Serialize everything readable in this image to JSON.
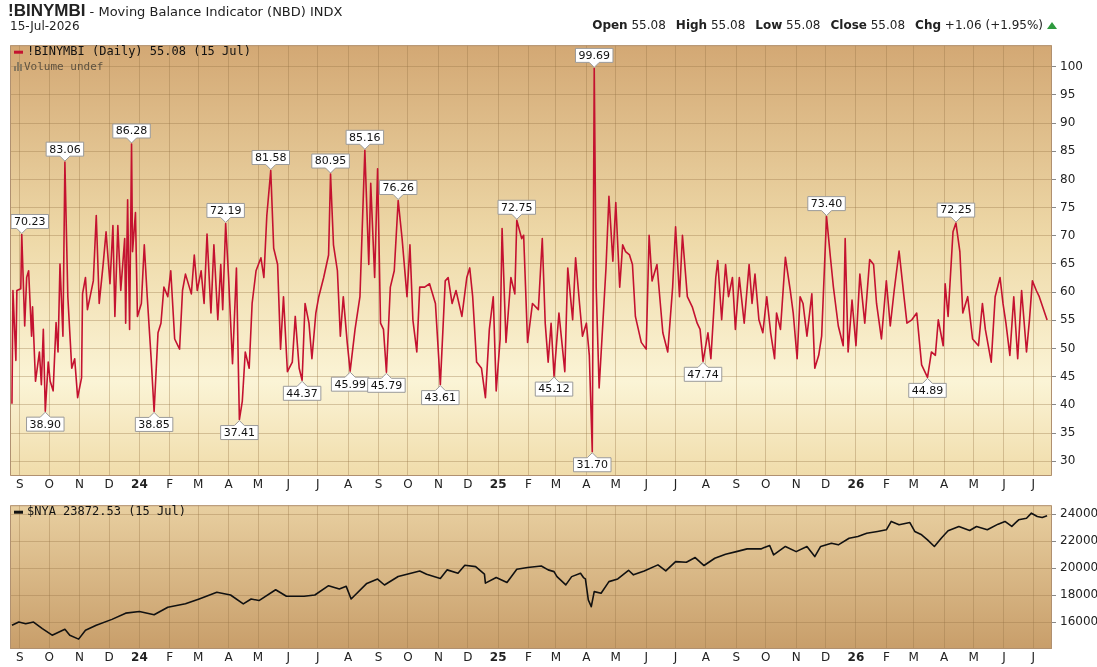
{
  "chart_data": [
    {
      "type": "line",
      "title": "!BINYMBI - Moving Balance Indicator (NBD) INDX",
      "subtitle": "15-Jul-2026",
      "annotations": [
        "Open 55.08",
        "High 55.08",
        "Low 55.08",
        "Close 55.08",
        "Chg +1.06 (+1.95%)",
        "Volume undef"
      ],
      "x": [
        "2023-08-24",
        "2023-08-25",
        "2023-08-28",
        "2023-08-29",
        "2023-09-02",
        "2023-09-03",
        "2023-09-06",
        "2023-09-08",
        "2023-09-10",
        "2023-09-13",
        "2023-09-14",
        "2023-09-17",
        "2023-09-21",
        "2023-09-23",
        "2023-09-25",
        "2023-09-27",
        "2023-09-30",
        "2023-10-02",
        "2023-10-05",
        "2023-10-08",
        "2023-10-10",
        "2023-10-12",
        "2023-10-15",
        "2023-10-17",
        "2023-10-20",
        "2023-10-24",
        "2023-10-27",
        "2023-10-30",
        "2023-11-03",
        "2023-11-04",
        "2023-11-07",
        "2023-11-09",
        "2023-11-15",
        "2023-11-18",
        "2023-11-21",
        "2023-11-25",
        "2023-11-28",
        "2023-12-02",
        "2023-12-05",
        "2023-12-07",
        "2023-12-10",
        "2023-12-13",
        "2023-12-17",
        "2023-12-18",
        "2023-12-20",
        "2023-12-22",
        "2023-12-24",
        "2023-12-25",
        "2023-12-28",
        "2023-12-30",
        "2024-01-03",
        "2024-01-06",
        "2024-01-09",
        "2024-01-13",
        "2024-01-16",
        "2024-01-20",
        "2024-01-23",
        "2024-01-26",
        "2024-01-30",
        "2024-02-02",
        "2024-02-06",
        "2024-02-11",
        "2024-02-14",
        "2024-02-17",
        "2024-02-23",
        "2024-02-26",
        "2024-02-29",
        "2024-03-04",
        "2024-03-07",
        "2024-03-10",
        "2024-03-14",
        "2024-03-17",
        "2024-03-21",
        "2024-03-24",
        "2024-03-26",
        "2024-03-29",
        "2024-04-01",
        "2024-04-05",
        "2024-04-09",
        "2024-04-12",
        "2024-04-15",
        "2024-04-18",
        "2024-04-22",
        "2024-04-25",
        "2024-04-29",
        "2024-05-04",
        "2024-05-07",
        "2024-05-10",
        "2024-05-14",
        "2024-05-17",
        "2024-05-21",
        "2024-05-24",
        "2024-05-27",
        "2024-05-31",
        "2024-06-05",
        "2024-06-08",
        "2024-06-12",
        "2024-06-15",
        "2024-06-18",
        "2024-06-22",
        "2024-06-25",
        "2024-06-29",
        "2024-07-02",
        "2024-07-07",
        "2024-07-12",
        "2024-07-14",
        "2024-07-17",
        "2024-07-21",
        "2024-07-24",
        "2024-07-27",
        "2024-07-31",
        "2024-08-03",
        "2024-08-08",
        "2024-08-13",
        "2024-08-18",
        "2024-08-22",
        "2024-08-24",
        "2024-08-28",
        "2024-08-31",
        "2024-09-03",
        "2024-09-06",
        "2024-09-09",
        "2024-09-13",
        "2024-09-17",
        "2024-09-21",
        "2024-09-25",
        "2024-09-30",
        "2024-10-03",
        "2024-10-06",
        "2024-10-10",
        "2024-10-13",
        "2024-10-18",
        "2024-10-23",
        "2024-10-29",
        "2024-11-03",
        "2024-11-08",
        "2024-11-11",
        "2024-11-15",
        "2024-11-19",
        "2024-11-25",
        "2024-11-30",
        "2024-12-03",
        "2024-12-06",
        "2024-12-10",
        "2024-12-15",
        "2024-12-19",
        "2024-12-23",
        "2024-12-27",
        "2024-12-30",
        "2025-01-03",
        "2025-01-05",
        "2025-01-09",
        "2025-01-14",
        "2025-01-18",
        "2025-01-20",
        "2025-01-25",
        "2025-01-27",
        "2025-01-31",
        "2025-02-05",
        "2025-02-11",
        "2025-02-15",
        "2025-02-18",
        "2025-02-21",
        "2025-02-24",
        "2025-02-27",
        "2025-03-04",
        "2025-03-07",
        "2025-03-10",
        "2025-03-13",
        "2025-03-18",
        "2025-03-21",
        "2025-03-25",
        "2025-03-28",
        "2025-04-01",
        "2025-04-04",
        "2025-04-07",
        "2025-04-09",
        "2025-04-11",
        "2025-04-14",
        "2025-04-18",
        "2025-04-21",
        "2025-04-24",
        "2025-04-28",
        "2025-05-01",
        "2025-05-05",
        "2025-05-08",
        "2025-05-11",
        "2025-05-15",
        "2025-05-18",
        "2025-05-21",
        "2025-05-27",
        "2025-06-01",
        "2025-06-04",
        "2025-06-07",
        "2025-06-12",
        "2025-06-18",
        "2025-06-23",
        "2025-06-28",
        "2025-07-01",
        "2025-07-05",
        "2025-07-08",
        "2025-07-13",
        "2025-07-18",
        "2025-07-23",
        "2025-07-26",
        "2025-07-29",
        "2025-08-03",
        "2025-08-06",
        "2025-08-11",
        "2025-08-13",
        "2025-08-17",
        "2025-08-21",
        "2025-08-24",
        "2025-08-28",
        "2025-08-31",
        "2025-09-04",
        "2025-09-09",
        "2025-09-14",
        "2025-09-17",
        "2025-09-20",
        "2025-09-24",
        "2025-09-28",
        "2025-10-02",
        "2025-10-06",
        "2025-10-10",
        "2025-10-12",
        "2025-10-16",
        "2025-10-21",
        "2025-10-26",
        "2025-10-29",
        "2025-11-02",
        "2025-11-05",
        "2025-11-08",
        "2025-11-12",
        "2025-11-17",
        "2025-11-20",
        "2025-11-24",
        "2025-11-27",
        "2025-11-30",
        "2025-12-02",
        "2025-12-06",
        "2025-12-09",
        "2025-12-14",
        "2025-12-19",
        "2025-12-21",
        "2025-12-24",
        "2025-12-28",
        "2026-01-01",
        "2026-01-05",
        "2026-01-10",
        "2026-01-15",
        "2026-01-19",
        "2026-01-22",
        "2026-01-27",
        "2026-02-01",
        "2026-02-05",
        "2026-02-09",
        "2026-02-14",
        "2026-02-19",
        "2026-02-22",
        "2026-02-27",
        "2026-03-04",
        "2026-03-09",
        "2026-03-15",
        "2026-03-19",
        "2026-03-23",
        "2026-03-26",
        "2026-03-31",
        "2026-04-02",
        "2026-04-05",
        "2026-04-10",
        "2026-04-13",
        "2026-04-17",
        "2026-04-20",
        "2026-04-25",
        "2026-04-30",
        "2026-05-06",
        "2026-05-10",
        "2026-05-13",
        "2026-05-19",
        "2026-05-23",
        "2026-05-28",
        "2026-05-31",
        "2026-06-03",
        "2026-06-07",
        "2026-06-11",
        "2026-06-15",
        "2026-06-19",
        "2026-06-24",
        "2026-06-27",
        "2026-06-30",
        "2026-07-04",
        "2026-07-07",
        "2026-07-15"
      ],
      "series": [
        {
          "name": "!BINYMBI (Daily) 55.08 (15 Jul)",
          "color": "#c41230",
          "values": [
            40.2,
            60.3,
            47.9,
            60.3,
            60.6,
            70.23,
            54.0,
            62.6,
            63.8,
            52.2,
            57.4,
            44.2,
            49.4,
            43.6,
            53.4,
            38.9,
            47.6,
            44.2,
            42.5,
            54.6,
            49.4,
            65.0,
            52.2,
            83.06,
            59.2,
            46.5,
            48.2,
            41.3,
            44.8,
            59.7,
            62.6,
            56.9,
            62.0,
            73.6,
            58.0,
            64.9,
            70.7,
            61.5,
            71.8,
            55.7,
            71.8,
            60.3,
            69.5,
            54.5,
            76.4,
            53.4,
            86.28,
            67.2,
            74.1,
            55.7,
            58.0,
            68.4,
            59.2,
            48.2,
            38.85,
            52.8,
            54.5,
            60.9,
            59.2,
            63.8,
            51.7,
            49.9,
            60.3,
            63.2,
            59.7,
            66.6,
            60.3,
            63.8,
            58.0,
            70.3,
            56.3,
            68.4,
            55.1,
            64.9,
            56.9,
            72.19,
            62.6,
            47.3,
            64.3,
            37.41,
            40.7,
            49.4,
            46.5,
            58.0,
            63.8,
            66.1,
            62.6,
            73.6,
            81.58,
            67.8,
            64.9,
            49.9,
            59.2,
            45.9,
            47.6,
            55.7,
            46.5,
            44.37,
            58.0,
            54.5,
            48.2,
            56.3,
            59.2,
            62.6,
            66.6,
            80.95,
            68.4,
            63.8,
            52.2,
            59.2,
            51.1,
            45.99,
            53.4,
            59.2,
            85.16,
            64.9,
            79.3,
            62.6,
            81.9,
            54.5,
            53.4,
            45.79,
            60.9,
            63.8,
            76.26,
            69.5,
            59.2,
            68.4,
            55.1,
            49.4,
            60.9,
            60.9,
            61.5,
            58.0,
            43.61,
            62.0,
            62.6,
            58.0,
            60.3,
            55.7,
            62.6,
            64.3,
            59.2,
            47.6,
            46.5,
            41.3,
            53.4,
            59.2,
            42.5,
            51.7,
            71.3,
            51.1,
            62.6,
            59.7,
            72.75,
            69.5,
            70.1,
            51.1,
            58.0,
            56.9,
            69.5,
            54.5,
            47.6,
            54.5,
            45.12,
            56.3,
            51.1,
            45.9,
            64.3,
            55.1,
            66.1,
            58.0,
            52.2,
            54.5,
            48.8,
            31.7,
            99.69,
            60.9,
            43.0,
            55.1,
            64.3,
            77.0,
            65.5,
            75.9,
            60.9,
            68.4,
            67.2,
            66.6,
            64.9,
            55.7,
            51.1,
            49.9,
            70.1,
            62.0,
            64.9,
            52.8,
            49.4,
            60.9,
            71.6,
            59.2,
            70.1,
            59.2,
            57.4,
            54.5,
            53.4,
            47.74,
            52.8,
            48.2,
            62.6,
            65.6,
            55.1,
            64.9,
            59.2,
            62.6,
            53.4,
            62.6,
            54.5,
            64.9,
            58.0,
            63.2,
            55.1,
            52.8,
            59.2,
            52.8,
            48.2,
            56.3,
            53.4,
            66.2,
            60.3,
            56.3,
            48.2,
            59.2,
            58.0,
            52.2,
            59.7,
            46.5,
            48.8,
            52.2,
            64.9,
            73.4,
            66.1,
            60.9,
            54.0,
            50.5,
            69.5,
            49.4,
            58.6,
            50.5,
            63.2,
            54.5,
            65.8,
            64.9,
            58.0,
            51.7,
            62.0,
            54.0,
            60.3,
            67.3,
            59.2,
            54.5,
            55.1,
            56.3,
            47.1,
            44.89,
            49.4,
            48.8,
            55.1,
            50.5,
            61.5,
            55.7,
            70.7,
            72.25,
            67.2,
            56.3,
            59.2,
            51.7,
            50.5,
            58.0,
            53.4,
            47.6,
            59.2,
            62.6,
            58.0,
            54.5,
            48.8,
            59.2,
            48.2,
            60.3,
            49.4,
            55.1,
            62.0,
            60.3,
            59.2,
            55.08
          ],
          "value_labels": [
            null,
            null,
            null,
            null,
            null,
            "70.23",
            null,
            null,
            null,
            null,
            null,
            null,
            null,
            null,
            null,
            "38.90",
            null,
            null,
            null,
            null,
            null,
            null,
            null,
            "83.06",
            null,
            null,
            null,
            null,
            null,
            null,
            null,
            null,
            null,
            null,
            null,
            null,
            null,
            null,
            null,
            null,
            null,
            null,
            null,
            null,
            null,
            null,
            "86.28",
            null,
            null,
            null,
            null,
            null,
            null,
            null,
            "38.85",
            null,
            null,
            null,
            null,
            null,
            null,
            null,
            null,
            null,
            null,
            null,
            null,
            null,
            null,
            null,
            null,
            null,
            null,
            null,
            null,
            "72.19",
            null,
            null,
            null,
            "37.41",
            null,
            null,
            null,
            null,
            null,
            null,
            null,
            null,
            "81.58",
            null,
            null,
            null,
            null,
            null,
            null,
            null,
            null,
            "44.37",
            null,
            null,
            null,
            null,
            null,
            null,
            null,
            "80.95",
            null,
            null,
            null,
            null,
            null,
            "45.99",
            null,
            null,
            "85.16",
            null,
            null,
            null,
            null,
            null,
            null,
            "45.79",
            null,
            null,
            "76.26",
            null,
            null,
            null,
            null,
            null,
            null,
            null,
            null,
            null,
            "43.61",
            null,
            null,
            null,
            null,
            null,
            null,
            null,
            null,
            null,
            null,
            null,
            null,
            null,
            null,
            null,
            null,
            null,
            null,
            null,
            "72.75",
            null,
            null,
            null,
            null,
            null,
            null,
            null,
            null,
            null,
            "45.12",
            null,
            null,
            null,
            null,
            null,
            null,
            null,
            null,
            null,
            null,
            "31.70",
            "99.69",
            null,
            null,
            null,
            null,
            null,
            null,
            null,
            null,
            null,
            null,
            null,
            null,
            null,
            null,
            null,
            null,
            null,
            null,
            null,
            null,
            null,
            null,
            null,
            null,
            null,
            null,
            null,
            null,
            "47.74",
            null,
            null,
            null,
            null,
            null,
            null,
            null,
            null,
            null,
            null,
            null,
            null,
            null,
            null,
            null,
            null,
            null,
            null,
            null,
            null,
            null,
            null,
            null,
            null,
            null,
            null,
            null,
            null,
            null,
            null,
            null,
            null,
            null,
            "73.40",
            null,
            null,
            null,
            null,
            null,
            null,
            null,
            null,
            null,
            null,
            null,
            null,
            null,
            null,
            null,
            null,
            null,
            null,
            null,
            null,
            null,
            null,
            null,
            "44.89",
            null,
            null,
            null,
            null,
            null,
            null,
            null,
            "72.25",
            null,
            null,
            null,
            null,
            null,
            null,
            null,
            null,
            null,
            null,
            null,
            null,
            null,
            null,
            null,
            null,
            null,
            null,
            null,
            null,
            null,
            null
          ]
        }
      ],
      "xlim": [
        "2023-08-22",
        "2026-07-20"
      ],
      "xticks": [
        {
          "value": "2023-09-01",
          "label": "S"
        },
        {
          "value": "2023-10-01",
          "label": "O"
        },
        {
          "value": "2023-11-01",
          "label": "N"
        },
        {
          "value": "2023-12-01",
          "label": "D"
        },
        {
          "value": "2024-01-01",
          "label": "24"
        },
        {
          "value": "2024-02-01",
          "label": "F"
        },
        {
          "value": "2024-03-01",
          "label": "M"
        },
        {
          "value": "2024-04-01",
          "label": "A"
        },
        {
          "value": "2024-05-01",
          "label": "M"
        },
        {
          "value": "2024-06-01",
          "label": "J"
        },
        {
          "value": "2024-07-01",
          "label": "J"
        },
        {
          "value": "2024-08-01",
          "label": "A"
        },
        {
          "value": "2024-09-01",
          "label": "S"
        },
        {
          "value": "2024-10-01",
          "label": "O"
        },
        {
          "value": "2024-11-01",
          "label": "N"
        },
        {
          "value": "2024-12-01",
          "label": "D"
        },
        {
          "value": "2025-01-01",
          "label": "25"
        },
        {
          "value": "2025-02-01",
          "label": "F"
        },
        {
          "value": "2025-03-01",
          "label": "M"
        },
        {
          "value": "2025-04-01",
          "label": "A"
        },
        {
          "value": "2025-05-01",
          "label": "M"
        },
        {
          "value": "2025-06-01",
          "label": "J"
        },
        {
          "value": "2025-07-01",
          "label": "J"
        },
        {
          "value": "2025-08-01",
          "label": "A"
        },
        {
          "value": "2025-09-01",
          "label": "S"
        },
        {
          "value": "2025-10-01",
          "label": "O"
        },
        {
          "value": "2025-11-01",
          "label": "N"
        },
        {
          "value": "2025-12-01",
          "label": "D"
        },
        {
          "value": "2026-01-01",
          "label": "26"
        },
        {
          "value": "2026-02-01",
          "label": "F"
        },
        {
          "value": "2026-03-01",
          "label": "M"
        },
        {
          "value": "2026-04-01",
          "label": "A"
        },
        {
          "value": "2026-05-01",
          "label": "M"
        },
        {
          "value": "2026-06-01",
          "label": "J"
        },
        {
          "value": "2026-07-01",
          "label": "J"
        }
      ],
      "ylim": [
        27.4,
        103.8
      ],
      "yticks": [
        30,
        35,
        40,
        45,
        50,
        55,
        60,
        65,
        70,
        75,
        80,
        85,
        90,
        95,
        100
      ],
      "grid": true,
      "legend": "top left"
    },
    {
      "type": "line",
      "x": [
        "2023-08-24",
        "2023-08-31",
        "2023-09-07",
        "2023-09-15",
        "2023-09-24",
        "2023-10-04",
        "2023-10-17",
        "2023-10-22",
        "2023-10-31",
        "2023-11-07",
        "2023-11-18",
        "2023-12-04",
        "2023-12-18",
        "2024-01-01",
        "2024-01-16",
        "2024-01-30",
        "2024-02-17",
        "2024-03-02",
        "2024-03-20",
        "2024-04-03",
        "2024-04-16",
        "2024-04-24",
        "2024-05-02",
        "2024-05-19",
        "2024-05-30",
        "2024-06-17",
        "2024-06-28",
        "2024-07-12",
        "2024-07-23",
        "2024-07-30",
        "2024-08-04",
        "2024-08-20",
        "2024-08-31",
        "2024-09-07",
        "2024-09-21",
        "2024-10-13",
        "2024-10-20",
        "2024-11-03",
        "2024-11-10",
        "2024-11-21",
        "2024-11-28",
        "2024-12-09",
        "2024-12-18",
        "2024-12-19",
        "2024-12-30",
        "2025-01-10",
        "2025-01-20",
        "2025-01-31",
        "2025-02-14",
        "2025-02-21",
        "2025-02-27",
        "2025-03-02",
        "2025-03-11",
        "2025-03-17",
        "2025-03-26",
        "2025-03-29",
        "2025-03-31",
        "2025-04-03",
        "2025-04-06",
        "2025-04-09",
        "2025-04-16",
        "2025-04-24",
        "2025-05-03",
        "2025-05-14",
        "2025-05-19",
        "2025-05-30",
        "2025-06-13",
        "2025-06-21",
        "2025-07-01",
        "2025-07-12",
        "2025-07-21",
        "2025-07-30",
        "2025-08-10",
        "2025-08-21",
        "2025-09-01",
        "2025-09-12",
        "2025-09-26",
        "2025-10-05",
        "2025-10-09",
        "2025-10-21",
        "2025-11-01",
        "2025-11-12",
        "2025-11-20",
        "2025-11-26",
        "2025-12-07",
        "2025-12-14",
        "2025-12-25",
        "2026-01-03",
        "2026-01-12",
        "2026-01-23",
        "2026-02-01",
        "2026-02-06",
        "2026-02-14",
        "2026-02-25",
        "2026-03-02",
        "2026-03-09",
        "2026-03-15",
        "2026-03-22",
        "2026-03-29",
        "2026-04-05",
        "2026-04-16",
        "2026-04-27",
        "2026-05-04",
        "2026-05-15",
        "2026-05-26",
        "2026-06-02",
        "2026-06-09",
        "2026-06-16",
        "2026-06-24",
        "2026-06-29",
        "2026-07-05",
        "2026-07-10",
        "2026-07-15"
      ],
      "series": [
        {
          "name": "$NYA 23872.53 (15 Jul)",
          "color": "#111111",
          "values": [
            15780,
            16020,
            15900,
            16020,
            15540,
            15050,
            15490,
            15050,
            14760,
            15410,
            15780,
            16220,
            16680,
            16800,
            16560,
            17120,
            17370,
            17730,
            18220,
            18020,
            17370,
            17730,
            17610,
            18410,
            17930,
            17930,
            18020,
            18710,
            18460,
            18660,
            17730,
            18880,
            19200,
            18760,
            19390,
            19800,
            19560,
            19240,
            19880,
            19630,
            20220,
            20120,
            19560,
            18900,
            19320,
            18950,
            19930,
            20050,
            20170,
            19880,
            19750,
            19380,
            18770,
            19380,
            19630,
            19310,
            19210,
            17650,
            17160,
            18270,
            18150,
            19010,
            19210,
            19850,
            19510,
            19800,
            20250,
            19800,
            20490,
            20440,
            20790,
            20200,
            20740,
            21040,
            21230,
            21430,
            21430,
            21680,
            20990,
            21610,
            21230,
            21610,
            20860,
            21610,
            21850,
            21730,
            22220,
            22350,
            22590,
            22720,
            22840,
            23460,
            23210,
            23380,
            22720,
            22470,
            22100,
            21610,
            22220,
            22770,
            23090,
            22790,
            23090,
            22840,
            23260,
            23460,
            23090,
            23580,
            23700,
            24070,
            23830,
            23750,
            23872.53
          ]
        }
      ],
      "xlim": [
        "2023-08-22",
        "2026-07-20"
      ],
      "xticks": [
        {
          "value": "2023-09-01",
          "label": "S"
        },
        {
          "value": "2023-10-01",
          "label": "O"
        },
        {
          "value": "2023-11-01",
          "label": "N"
        },
        {
          "value": "2023-12-01",
          "label": "D"
        },
        {
          "value": "2024-01-01",
          "label": "24"
        },
        {
          "value": "2024-02-01",
          "label": "F"
        },
        {
          "value": "2024-03-01",
          "label": "M"
        },
        {
          "value": "2024-04-01",
          "label": "A"
        },
        {
          "value": "2024-05-01",
          "label": "M"
        },
        {
          "value": "2024-06-01",
          "label": "J"
        },
        {
          "value": "2024-07-01",
          "label": "J"
        },
        {
          "value": "2024-08-01",
          "label": "A"
        },
        {
          "value": "2024-09-01",
          "label": "S"
        },
        {
          "value": "2024-10-01",
          "label": "O"
        },
        {
          "value": "2024-11-01",
          "label": "N"
        },
        {
          "value": "2024-12-01",
          "label": "D"
        },
        {
          "value": "2025-01-01",
          "label": "25"
        },
        {
          "value": "2025-02-01",
          "label": "F"
        },
        {
          "value": "2025-03-01",
          "label": "M"
        },
        {
          "value": "2025-04-01",
          "label": "A"
        },
        {
          "value": "2025-05-01",
          "label": "M"
        },
        {
          "value": "2025-06-01",
          "label": "J"
        },
        {
          "value": "2025-07-01",
          "label": "J"
        },
        {
          "value": "2025-08-01",
          "label": "A"
        },
        {
          "value": "2025-09-01",
          "label": "S"
        },
        {
          "value": "2025-10-01",
          "label": "O"
        },
        {
          "value": "2025-11-01",
          "label": "N"
        },
        {
          "value": "2025-12-01",
          "label": "D"
        },
        {
          "value": "2026-01-01",
          "label": "26"
        },
        {
          "value": "2026-02-01",
          "label": "F"
        },
        {
          "value": "2026-03-01",
          "label": "M"
        },
        {
          "value": "2026-04-01",
          "label": "A"
        },
        {
          "value": "2026-05-01",
          "label": "M"
        },
        {
          "value": "2026-06-01",
          "label": "J"
        },
        {
          "value": "2026-07-01",
          "label": "J"
        }
      ],
      "ylim": [
        14030,
        24660
      ],
      "yticks": [
        16000,
        18000,
        20000,
        22000,
        24000
      ],
      "grid": true,
      "legend": "top left"
    }
  ]
}
